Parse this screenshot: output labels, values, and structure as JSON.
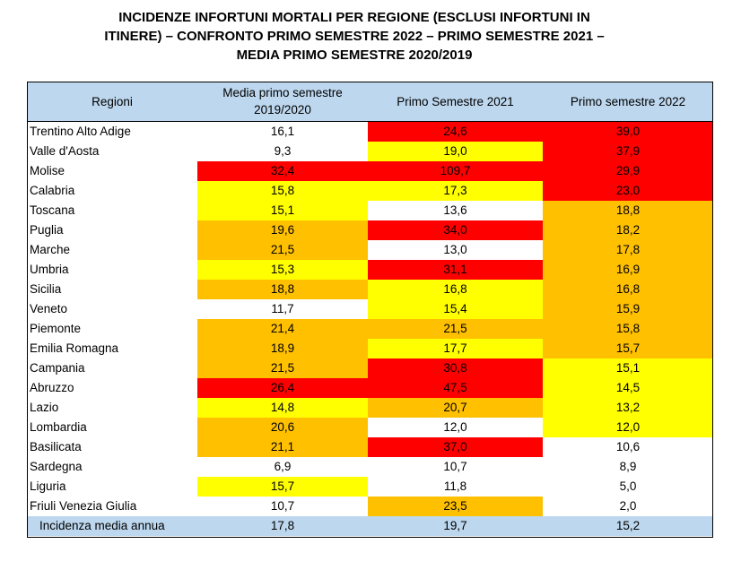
{
  "title_lines": [
    "INCIDENZE INFORTUNI MORTALI PER REGIONE (ESCLUSI INFORTUNI IN",
    "ITINERE) – CONFRONTO PRIMO SEMESTRE 2022 – PRIMO SEMESTRE 2021 –",
    "MEDIA PRIMO SEMESTRE 2020/2019"
  ],
  "headers": {
    "region": "Regioni",
    "col1_line1": "Media primo semestre",
    "col1_line2": "2019/2020",
    "col2": "Primo Semestre 2021",
    "col3": "Primo semestre 2022"
  },
  "colors": {
    "header_bg": "#bdd7ee",
    "white": "#ffffff",
    "yellow": "#ffff00",
    "orange": "#ffc000",
    "red": "#ff0000"
  },
  "rows": [
    {
      "region": "Trentino Alto Adige",
      "v1": "16,1",
      "c1": "white",
      "v2": "24,6",
      "c2": "red",
      "v3": "39,0",
      "c3": "red"
    },
    {
      "region": "Valle d'Aosta",
      "v1": "9,3",
      "c1": "white",
      "v2": "19,0",
      "c2": "yellow",
      "v3": "37,9",
      "c3": "red"
    },
    {
      "region": "Molise",
      "v1": "32,4",
      "c1": "red",
      "v2": "109,7",
      "c2": "red",
      "v3": "29,9",
      "c3": "red"
    },
    {
      "region": "Calabria",
      "v1": "15,8",
      "c1": "yellow",
      "v2": "17,3",
      "c2": "yellow",
      "v3": "23,0",
      "c3": "red"
    },
    {
      "region": "Toscana",
      "v1": "15,1",
      "c1": "yellow",
      "v2": "13,6",
      "c2": "white",
      "v3": "18,8",
      "c3": "orange"
    },
    {
      "region": "Puglia",
      "v1": "19,6",
      "c1": "orange",
      "v2": "34,0",
      "c2": "red",
      "v3": "18,2",
      "c3": "orange"
    },
    {
      "region": "Marche",
      "v1": "21,5",
      "c1": "orange",
      "v2": "13,0",
      "c2": "white",
      "v3": "17,8",
      "c3": "orange"
    },
    {
      "region": "Umbria",
      "v1": "15,3",
      "c1": "yellow",
      "v2": "31,1",
      "c2": "red",
      "v3": "16,9",
      "c3": "orange"
    },
    {
      "region": "Sicilia",
      "v1": "18,8",
      "c1": "orange",
      "v2": "16,8",
      "c2": "yellow",
      "v3": "16,8",
      "c3": "orange"
    },
    {
      "region": "Veneto",
      "v1": "11,7",
      "c1": "white",
      "v2": "15,4",
      "c2": "yellow",
      "v3": "15,9",
      "c3": "orange"
    },
    {
      "region": "Piemonte",
      "v1": "21,4",
      "c1": "orange",
      "v2": "21,5",
      "c2": "orange",
      "v3": "15,8",
      "c3": "orange"
    },
    {
      "region": "Emilia Romagna",
      "v1": "18,9",
      "c1": "orange",
      "v2": "17,7",
      "c2": "yellow",
      "v3": "15,7",
      "c3": "orange"
    },
    {
      "region": "Campania",
      "v1": "21,5",
      "c1": "orange",
      "v2": "30,8",
      "c2": "red",
      "v3": "15,1",
      "c3": "yellow"
    },
    {
      "region": "Abruzzo",
      "v1": "26,4",
      "c1": "red",
      "v2": "47,5",
      "c2": "red",
      "v3": "14,5",
      "c3": "yellow"
    },
    {
      "region": "Lazio",
      "v1": "14,8",
      "c1": "yellow",
      "v2": "20,7",
      "c2": "orange",
      "v3": "13,2",
      "c3": "yellow"
    },
    {
      "region": "Lombardia",
      "v1": "20,6",
      "c1": "orange",
      "v2": "12,0",
      "c2": "white",
      "v3": "12,0",
      "c3": "yellow"
    },
    {
      "region": "Basilicata",
      "v1": "21,1",
      "c1": "orange",
      "v2": "37,0",
      "c2": "red",
      "v3": "10,6",
      "c3": "white"
    },
    {
      "region": "Sardegna",
      "v1": "6,9",
      "c1": "white",
      "v2": "10,7",
      "c2": "white",
      "v3": "8,9",
      "c3": "white"
    },
    {
      "region": "Liguria",
      "v1": "15,7",
      "c1": "yellow",
      "v2": "11,8",
      "c2": "white",
      "v3": "5,0",
      "c3": "white"
    },
    {
      "region": "Friuli Venezia Giulia",
      "v1": "10,7",
      "c1": "white",
      "v2": "23,5",
      "c2": "orange",
      "v3": "2,0",
      "c3": "white"
    }
  ],
  "footer": {
    "label": "Incidenza media annua",
    "v1": "17,8",
    "v2": "19,7",
    "v3": "15,2"
  }
}
